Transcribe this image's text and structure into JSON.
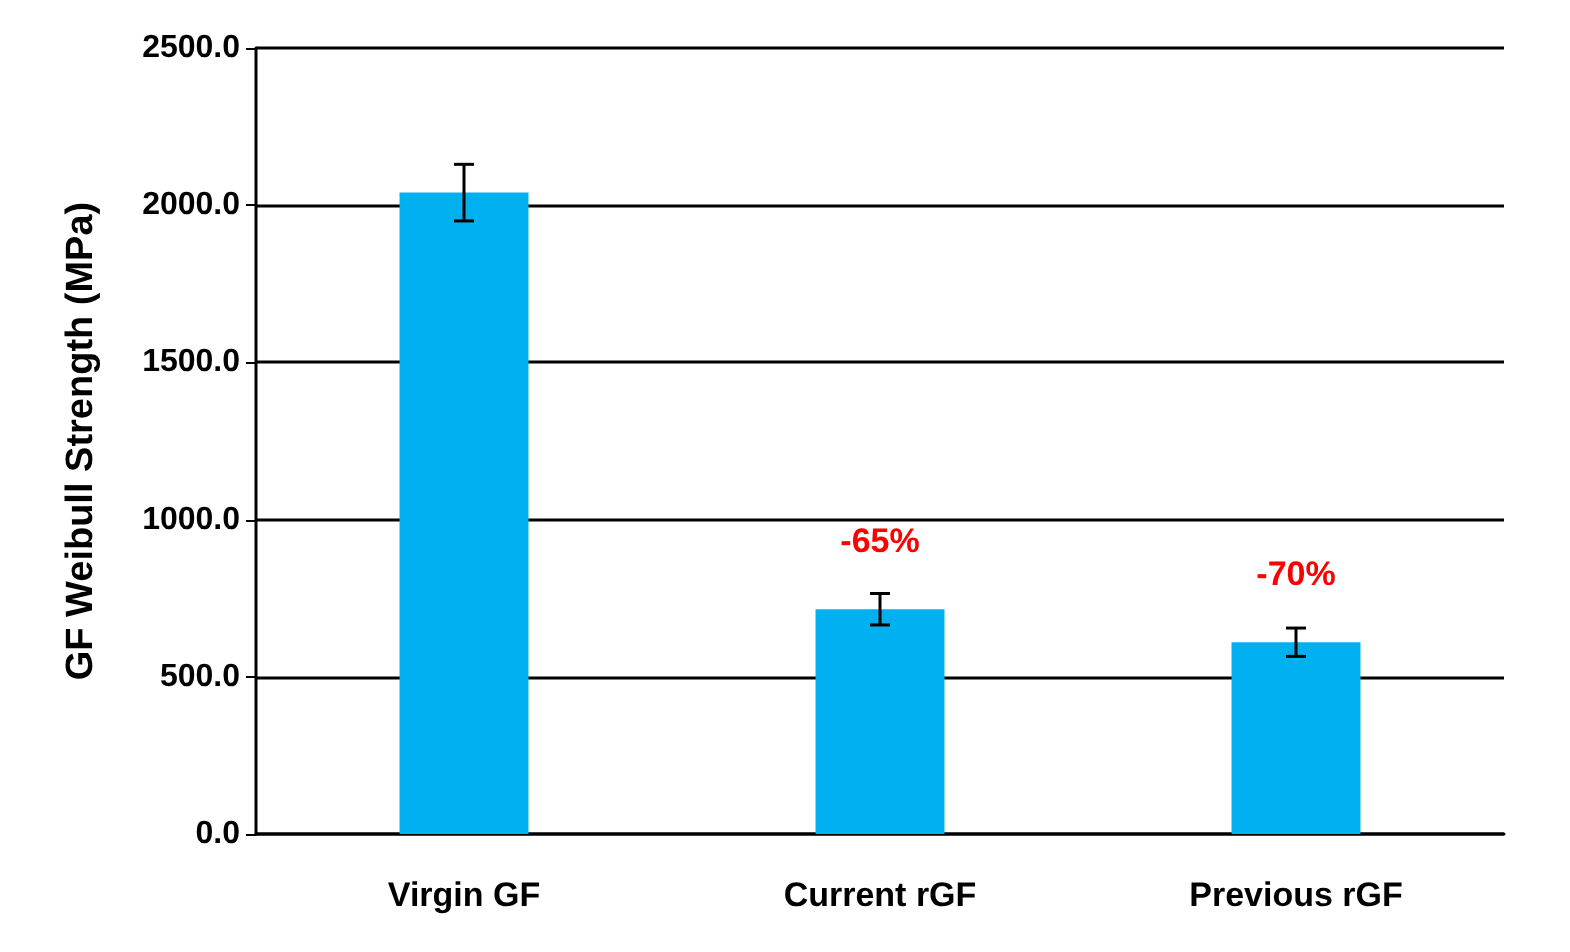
{
  "chart_data": {
    "type": "bar",
    "ylabel": "GF Weibull Strength (MPa)",
    "categories": [
      "Virgin GF",
      "Current rGF",
      "Previous rGF"
    ],
    "values": [
      2040,
      715,
      610
    ],
    "errors": [
      90,
      50,
      45
    ],
    "color": "#00b0f0",
    "ylim": [
      0,
      2500
    ],
    "yticks": [
      {
        "value": 0,
        "label": "0.0"
      },
      {
        "value": 500,
        "label": "500.0"
      },
      {
        "value": 1000,
        "label": "1000.0"
      },
      {
        "value": 1500,
        "label": "1500.0"
      },
      {
        "value": 2000,
        "label": "2000.0"
      },
      {
        "value": 2500,
        "label": "2500.0"
      }
    ],
    "grid": "y",
    "annotations": [
      {
        "text": "-65%",
        "x": "Current rGF",
        "y": 715
      },
      {
        "text": "-70%",
        "x": "Previous rGF",
        "y": 610
      }
    ]
  }
}
